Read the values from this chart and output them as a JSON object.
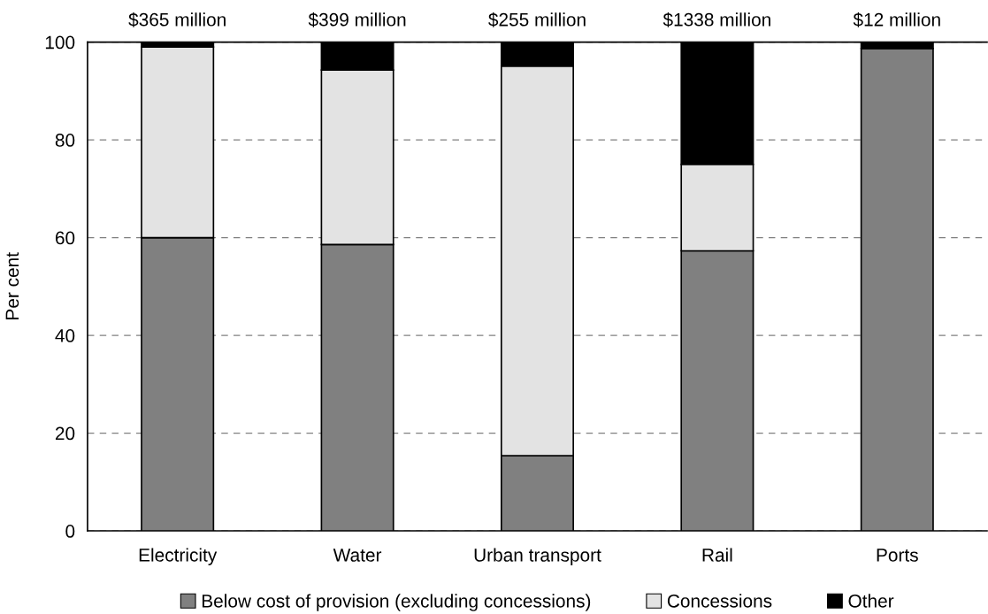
{
  "chart_data": {
    "type": "bar",
    "stacked": true,
    "ylabel": "Per cent",
    "categories": [
      "Electricity",
      "Water",
      "Urban transport",
      "Rail",
      "Ports"
    ],
    "series": [
      {
        "name": "Below cost of provision (excluding concessions)",
        "color": "#808080",
        "values": [
          60,
          58.6,
          15.4,
          57.3,
          98.7
        ]
      },
      {
        "name": "Concessions",
        "color": "#e3e3e3",
        "values": [
          39,
          35.7,
          79.7,
          17.7,
          0
        ]
      },
      {
        "name": "Other",
        "color": "#000000",
        "values": [
          1,
          5.7,
          4.9,
          25,
          1.3
        ]
      }
    ],
    "annotations": [
      "$365 million",
      "$399 million",
      "$255 million",
      "$1338 million",
      "$12 million"
    ],
    "ylim": [
      0,
      100
    ],
    "yticks": [
      0,
      20,
      40,
      60,
      80,
      100
    ],
    "grid": "y",
    "line_style": "dashed",
    "legend": "bottom"
  }
}
